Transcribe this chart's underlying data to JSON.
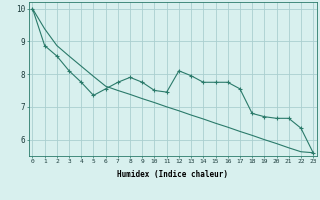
{
  "x": [
    0,
    1,
    2,
    3,
    4,
    5,
    6,
    7,
    8,
    9,
    10,
    11,
    12,
    13,
    14,
    15,
    16,
    17,
    18,
    19,
    20,
    21,
    22,
    23
  ],
  "y_line": [
    10.0,
    8.87,
    8.55,
    8.1,
    7.75,
    7.35,
    7.55,
    7.75,
    7.9,
    7.75,
    7.5,
    7.45,
    8.1,
    7.95,
    7.75,
    7.75,
    7.75,
    7.55,
    6.8,
    6.7,
    6.65,
    6.65,
    6.35,
    5.6
  ],
  "y_trend": [
    10.0,
    9.38,
    8.87,
    8.55,
    8.24,
    7.93,
    7.63,
    7.5,
    7.38,
    7.25,
    7.13,
    7.0,
    6.88,
    6.75,
    6.63,
    6.5,
    6.38,
    6.25,
    6.13,
    6.0,
    5.88,
    5.75,
    5.63,
    5.6
  ],
  "xlabel": "Humidex (Indice chaleur)",
  "xticks": [
    0,
    1,
    2,
    3,
    4,
    5,
    6,
    7,
    8,
    9,
    10,
    11,
    12,
    13,
    14,
    15,
    16,
    17,
    18,
    19,
    20,
    21,
    22,
    23
  ],
  "yticks": [
    6,
    7,
    8,
    9,
    10
  ],
  "ylim": [
    5.5,
    10.2
  ],
  "xlim": [
    -0.3,
    23.3
  ],
  "line_color": "#2a7a6a",
  "bg_color": "#d8f0ee",
  "grid_color": "#aacfcf"
}
